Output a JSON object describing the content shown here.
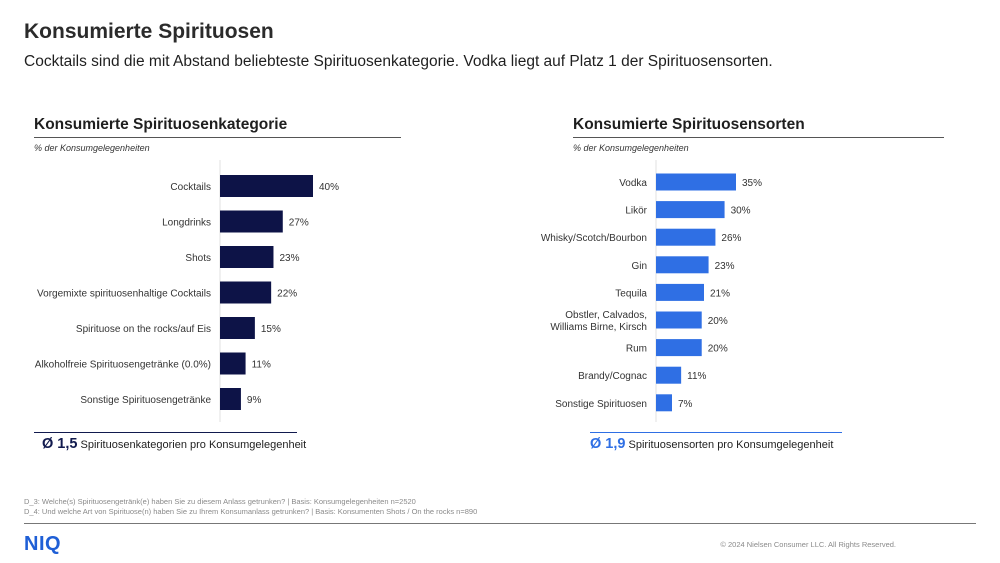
{
  "header": {
    "title": "Konsumierte Spirituosen",
    "subtitle": "Cocktails sind die mit Abstand beliebteste Spirituosenkategorie. Vodka liegt auf Platz 1 der Spirituosensorten."
  },
  "left_panel": {
    "title": "Konsumierte Spirituosenkategorie",
    "unit": "% der Konsumgelegenheiten",
    "avg_value": "Ø 1,5",
    "avg_text": "Spirituosenkategorien pro Konsumgelegenheit",
    "avg_color": "#111a4e"
  },
  "right_panel": {
    "title": "Konsumierte Spirituosensorten",
    "unit": "% der Konsumgelegenheiten",
    "avg_value": "Ø 1,9",
    "avg_text": "Spirituosensorten pro Konsumgelegenheit",
    "avg_color": "#2f6fe4"
  },
  "chart_data": [
    {
      "type": "bar",
      "orientation": "horizontal",
      "title": "Konsumierte Spirituosenkategorie",
      "ylabel": "% der Konsumgelegenheiten",
      "color": "#0d1347",
      "categories": [
        "Cocktails",
        "Longdrinks",
        "Shots",
        "Vorgemixte spirituosenhaltige Cocktails",
        "Spirituose on the rocks/auf Eis",
        "Alkoholfreie Spirituosengetränke (0.0%)",
        "Sonstige Spirituosengetränke"
      ],
      "values": [
        40,
        27,
        23,
        22,
        15,
        11,
        9
      ],
      "labels": [
        "40%",
        "27%",
        "23%",
        "22%",
        "15%",
        "11%",
        "9%"
      ],
      "xlim": [
        0,
        40
      ]
    },
    {
      "type": "bar",
      "orientation": "horizontal",
      "title": "Konsumierte Spirituosensorten",
      "ylabel": "% der Konsumgelegenheiten",
      "color": "#2f6fe4",
      "categories": [
        "Vodka",
        "Likör",
        "Whisky/Scotch/Bourbon",
        "Gin",
        "Tequila",
        "Obstler, Calvados,\nWilliams Birne, Kirsch",
        "Rum",
        "Brandy/Cognac",
        "Sonstige Spirituosen"
      ],
      "values": [
        35,
        30,
        26,
        23,
        21,
        20,
        20,
        11,
        7
      ],
      "labels": [
        "35%",
        "30%",
        "26%",
        "23%",
        "21%",
        "20%",
        "20%",
        "11%",
        "7%"
      ],
      "xlim": [
        0,
        35
      ]
    }
  ],
  "footnotes": {
    "line1": "D_3: Welche(s) Spirituosengetränk(e) haben Sie zu diesem Anlass getrunken? | Basis: Konsumgelegenheiten n=2520",
    "line2": "D_4: Und welche Art von Spirituose(n) haben Sie zu Ihrem Konsumanlass getrunken? | Basis: Konsumenten Shots / On the rocks n=890"
  },
  "footer": {
    "logo": "NIQ",
    "copyright": "© 2024 Nielsen Consumer LLC. All Rights Reserved."
  }
}
